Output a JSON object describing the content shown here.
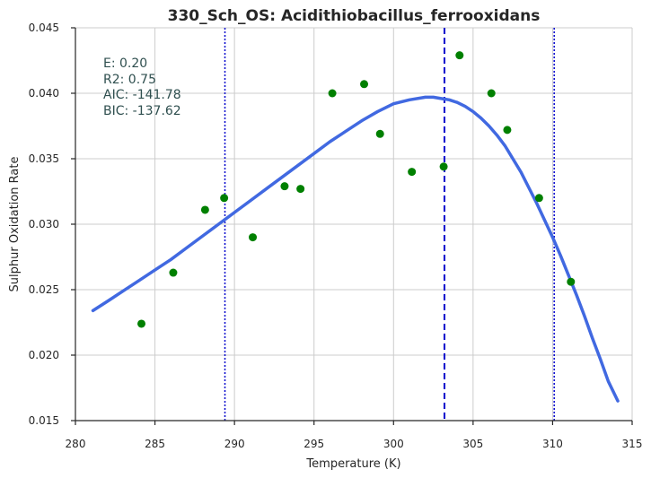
{
  "chart_data": {
    "type": "scatter",
    "title": "330_Sch_OS: Acidithiobacillus_ferrooxidans",
    "xlabel": "Temperature (K)",
    "ylabel": "Sulphur Oxidation Rate",
    "xlim": [
      280,
      315
    ],
    "ylim": [
      0.015,
      0.045
    ],
    "x_ticks": [
      280,
      285,
      290,
      295,
      300,
      305,
      310,
      315
    ],
    "y_ticks": [
      0.015,
      0.02,
      0.025,
      0.03,
      0.035,
      0.04,
      0.045
    ],
    "x_tick_labels": [
      "280",
      "285",
      "290",
      "295",
      "300",
      "305",
      "310",
      "315"
    ],
    "y_tick_labels": [
      "0.015",
      "0.020",
      "0.025",
      "0.030",
      "0.035",
      "0.040",
      "0.045"
    ],
    "grid": true,
    "points": {
      "color": "#008000",
      "x": [
        284.15,
        286.15,
        288.15,
        289.35,
        291.15,
        293.15,
        294.15,
        296.15,
        298.15,
        299.15,
        301.15,
        303.15,
        304.15,
        306.15,
        307.15,
        309.15,
        311.15
      ],
      "y": [
        0.0224,
        0.0263,
        0.0311,
        0.032,
        0.029,
        0.0329,
        0.0327,
        0.04,
        0.0407,
        0.0369,
        0.034,
        0.0344,
        0.0429,
        0.04,
        0.0372,
        0.032,
        0.0256
      ]
    },
    "fit_curve": {
      "color": "#4169E1",
      "x": [
        281.1,
        282,
        283,
        284,
        285,
        286,
        287,
        288,
        289,
        290,
        291,
        292,
        293,
        294,
        295,
        296,
        297,
        298,
        299,
        300,
        301,
        302,
        302.5,
        303,
        303.5,
        304,
        304.5,
        305,
        305.5,
        306,
        306.5,
        307,
        307.5,
        308,
        308.5,
        309,
        309.5,
        310,
        310.5,
        311,
        311.5,
        312,
        312.5,
        313,
        313.5,
        314.1
      ],
      "y": [
        0.0234,
        0.0241,
        0.0249,
        0.0257,
        0.0265,
        0.0273,
        0.0282,
        0.0291,
        0.03,
        0.0309,
        0.0318,
        0.0327,
        0.0336,
        0.0345,
        0.0354,
        0.0363,
        0.0371,
        0.0379,
        0.0386,
        0.0392,
        0.0395,
        0.0397,
        0.0397,
        0.0396,
        0.0395,
        0.0393,
        0.039,
        0.0386,
        0.0381,
        0.0375,
        0.0368,
        0.036,
        0.035,
        0.034,
        0.0328,
        0.0316,
        0.0303,
        0.029,
        0.0276,
        0.0261,
        0.0246,
        0.023,
        0.0213,
        0.0197,
        0.018,
        0.0165
      ]
    },
    "vlines": [
      {
        "x": 303.2,
        "style": "dashed",
        "color": "#0000CD"
      },
      {
        "x": 289.4,
        "style": "dotted",
        "color": "#0000CD"
      },
      {
        "x": 310.1,
        "style": "dotted",
        "color": "#0000CD"
      }
    ],
    "annotations": [
      "E:  0.20",
      "R2:  0.75",
      "AIC: -141.78",
      "BIC: -137.62"
    ]
  }
}
